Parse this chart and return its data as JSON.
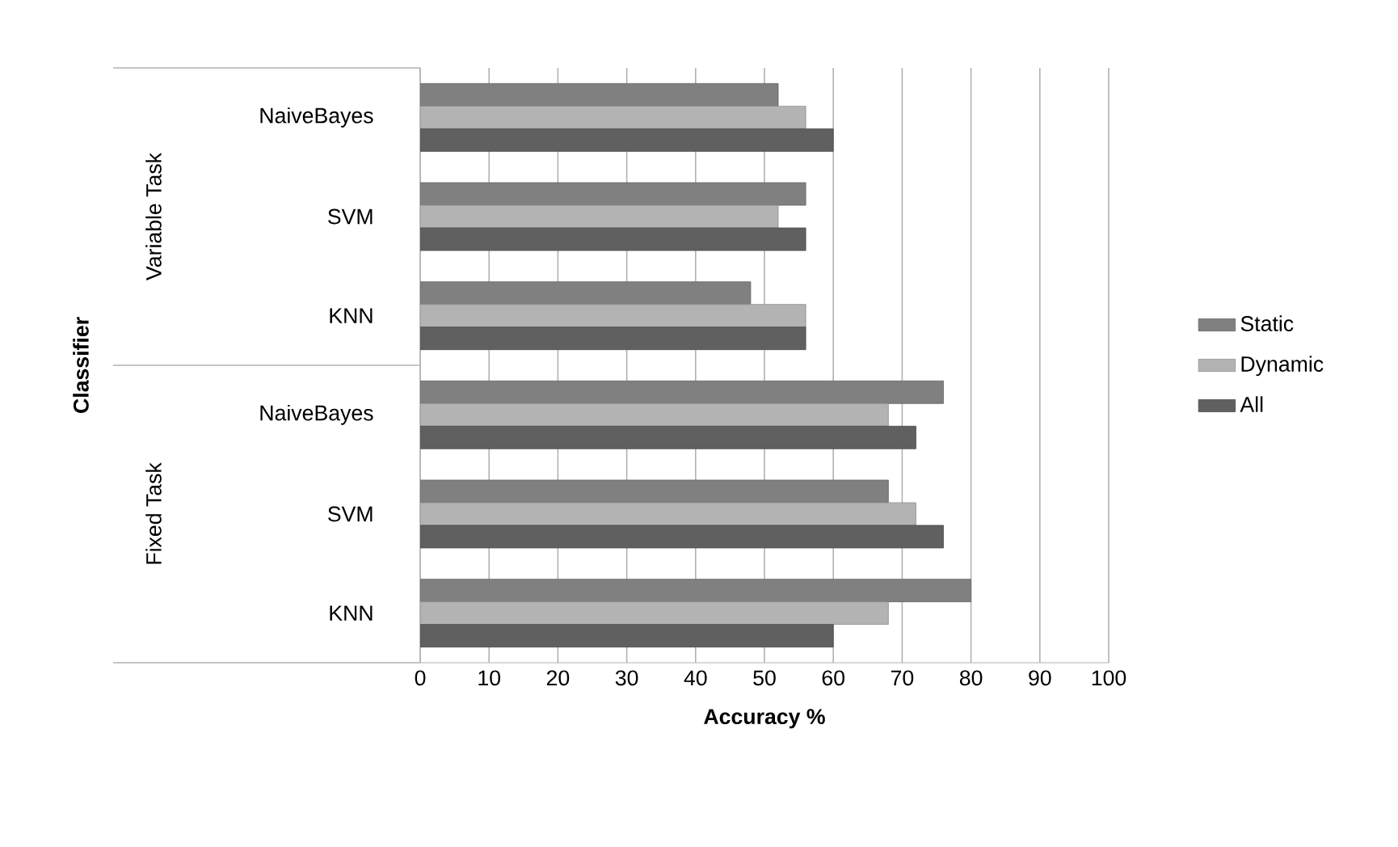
{
  "chart_data": {
    "type": "bar",
    "orientation": "horizontal",
    "xlabel": "Accuracy %",
    "categories": [
      "NaiveBayes",
      "SVM",
      "KNN",
      "NaiveBayes",
      "SVM",
      "KNN"
    ],
    "annotations": [
      "Classifier",
      "Variable Task",
      "Fixed Task"
    ],
    "series": [
      {
        "name": "Static",
        "color": "#808080",
        "values": [
          52,
          56,
          48,
          76,
          68,
          80
        ]
      },
      {
        "name": "Dynamic",
        "color": "#b3b3b3",
        "values": [
          56,
          52,
          56,
          68,
          72,
          68
        ]
      },
      {
        "name": "All",
        "color": "#606060",
        "values": [
          60,
          56,
          56,
          72,
          76,
          60
        ]
      }
    ],
    "xlim": [
      0,
      100
    ],
    "xticks": [
      0,
      10,
      20,
      30,
      40,
      50,
      60,
      70,
      80,
      90,
      100
    ],
    "grid": "x",
    "legend": "right"
  }
}
